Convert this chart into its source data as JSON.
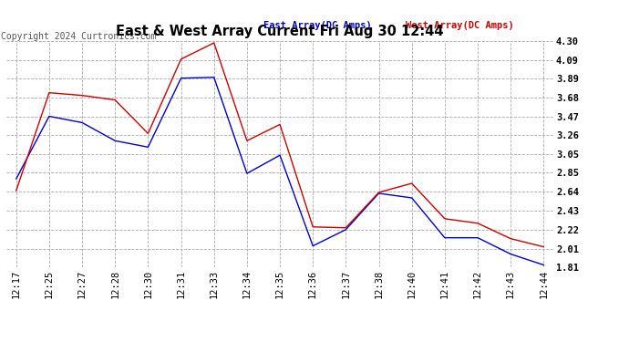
{
  "title": "East & West Array Current Fri Aug 30 12:44",
  "copyright": "Copyright 2024 Curtronics.com",
  "legend_east": "East Array(DC Amps)",
  "legend_west": "West Array(DC Amps)",
  "x_labels": [
    "12:17",
    "12:25",
    "12:27",
    "12:28",
    "12:30",
    "12:31",
    "12:33",
    "12:34",
    "12:35",
    "12:36",
    "12:37",
    "12:38",
    "12:40",
    "12:41",
    "12:42",
    "12:43",
    "12:44"
  ],
  "east_y": [
    2.78,
    3.47,
    3.4,
    3.2,
    3.13,
    3.89,
    3.9,
    2.84,
    3.04,
    2.04,
    2.22,
    2.62,
    2.57,
    2.13,
    2.13,
    1.95,
    1.83
  ],
  "west_y": [
    2.65,
    3.73,
    3.7,
    3.65,
    3.28,
    4.1,
    4.28,
    3.2,
    3.38,
    2.25,
    2.24,
    2.63,
    2.73,
    2.34,
    2.29,
    2.12,
    2.03
  ],
  "ylim": [
    1.81,
    4.3
  ],
  "yticks": [
    1.81,
    2.01,
    2.22,
    2.43,
    2.64,
    2.85,
    3.05,
    3.26,
    3.47,
    3.68,
    3.89,
    4.09,
    4.3
  ],
  "east_color": "#0000cc",
  "west_color": "#cc0000",
  "grid_color": "#aaaaaa",
  "bg_color": "#ffffff",
  "title_fontsize": 10.5,
  "tick_fontsize": 7.5,
  "copyright_fontsize": 7,
  "legend_fontsize": 7.5
}
